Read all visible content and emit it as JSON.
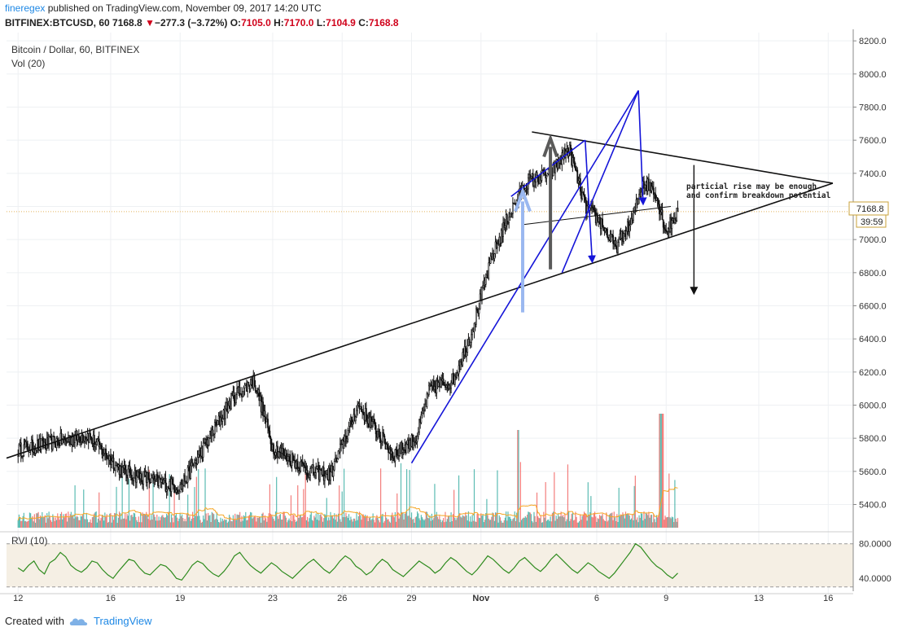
{
  "header": {
    "author": "fineregex",
    "published_text": "published on TradingView.com, November 09, 2017 14:20 UTC",
    "symbol": "BITFINEX:BTCUSD, 60",
    "last": "7168.8",
    "change": "−277.3 (−3.72%)",
    "o_label": "O:",
    "o_value": "7105.0",
    "h_label": "H:",
    "h_value": "7170.0",
    "l_label": "L:",
    "l_value": "7104.9",
    "c_label": "C:",
    "c_value": "7168.8"
  },
  "legend": {
    "title": "Bitcoin / Dollar, 60, BITFINEX",
    "volume": "Vol (20)",
    "rvi": "RVI (10)"
  },
  "price_tag": {
    "value": "7168.8",
    "countdown": "39:59"
  },
  "annotation": {
    "line1": "particial rise may be enough",
    "line2": "and confirm breakdown potential"
  },
  "footer": {
    "created_with": "Created with",
    "brand": "TradingView"
  },
  "colors": {
    "up": "#26a69a",
    "down": "#ef5350",
    "blue_lines": "#1515d8",
    "light_blue_arrow": "#9ab8f0",
    "grey_arrow": "#5a5a5a",
    "rvi_line": "#2e8b1e",
    "rvi_band": "#f5efe4",
    "vol_ma": "#f5a623"
  },
  "chart_data": [
    {
      "type": "candlestick",
      "title": "Bitcoin / Dollar, 60, BITFINEX",
      "yaxis_ticks": [
        5400,
        5600,
        5800,
        6000,
        6200,
        6400,
        6600,
        6800,
        7000,
        7200,
        7400,
        7600,
        7800,
        8000,
        8200
      ],
      "ylim": [
        5250,
        8250
      ],
      "xaxis_ticks": [
        "12",
        "16",
        "19",
        "23",
        "26",
        "29",
        "Nov",
        "6",
        "9",
        "13",
        "16"
      ],
      "x_tick_days": [
        12,
        16,
        19,
        23,
        26,
        29,
        32,
        37,
        40,
        44,
        47
      ],
      "x_day_origin": "October",
      "xlim_days": [
        11.5,
        47.8
      ],
      "key_prices": [
        {
          "day": 12.0,
          "price": 5730
        },
        {
          "day": 15.0,
          "price": 5820
        },
        {
          "day": 16.5,
          "price": 5600
        },
        {
          "day": 19.0,
          "price": 5500
        },
        {
          "day": 21.3,
          "price": 6050
        },
        {
          "day": 22.2,
          "price": 6150
        },
        {
          "day": 23.0,
          "price": 5750
        },
        {
          "day": 24.6,
          "price": 5600
        },
        {
          "day": 25.5,
          "price": 5580
        },
        {
          "day": 26.7,
          "price": 6000
        },
        {
          "day": 28.2,
          "price": 5700
        },
        {
          "day": 29.2,
          "price": 5800
        },
        {
          "day": 29.8,
          "price": 6100
        },
        {
          "day": 30.8,
          "price": 6150
        },
        {
          "day": 31.5,
          "price": 6400
        },
        {
          "day": 32.5,
          "price": 6900
        },
        {
          "day": 33.2,
          "price": 7150
        },
        {
          "day": 34.0,
          "price": 7350
        },
        {
          "day": 35.0,
          "price": 7400
        },
        {
          "day": 35.8,
          "price": 7550
        },
        {
          "day": 36.5,
          "price": 7200
        },
        {
          "day": 37.2,
          "price": 7100
        },
        {
          "day": 37.8,
          "price": 6950
        },
        {
          "day": 38.5,
          "price": 7100
        },
        {
          "day": 39.0,
          "price": 7350
        },
        {
          "day": 39.5,
          "price": 7300
        },
        {
          "day": 40.0,
          "price": 7050
        },
        {
          "day": 40.5,
          "price": 7168.8
        }
      ]
    },
    {
      "type": "bar",
      "title": "Vol (20)",
      "description": "hourly volume bars beneath price"
    },
    {
      "type": "line",
      "title": "RVI (10)",
      "yaxis_ticks": [
        40.0,
        80.0
      ],
      "ylim": [
        26,
        92
      ],
      "bands": [
        30,
        80
      ],
      "values": [
        52,
        48,
        55,
        60,
        50,
        45,
        58,
        62,
        70,
        65,
        55,
        50,
        47,
        52,
        60,
        58,
        50,
        44,
        40,
        48,
        55,
        62,
        60,
        52,
        46,
        44,
        50,
        56,
        54,
        48,
        40,
        38,
        46,
        55,
        60,
        57,
        50,
        45,
        42,
        48,
        56,
        66,
        70,
        62,
        55,
        50,
        46,
        52,
        58,
        54,
        48,
        44,
        40,
        46,
        52,
        58,
        62,
        56,
        50,
        46,
        52,
        60,
        66,
        62,
        54,
        50,
        44,
        48,
        56,
        62,
        58,
        50,
        46,
        42,
        48,
        54,
        60,
        56,
        52,
        46,
        50,
        58,
        64,
        60,
        54,
        48,
        44,
        50,
        58,
        66,
        62,
        56,
        50,
        46,
        52,
        60,
        64,
        58,
        52,
        48,
        54,
        62,
        68,
        62,
        56,
        50,
        46,
        52,
        58,
        54,
        48,
        44,
        40,
        46,
        54,
        62,
        70,
        80,
        76,
        68,
        60,
        54,
        50,
        44,
        40,
        46
      ]
    }
  ]
}
